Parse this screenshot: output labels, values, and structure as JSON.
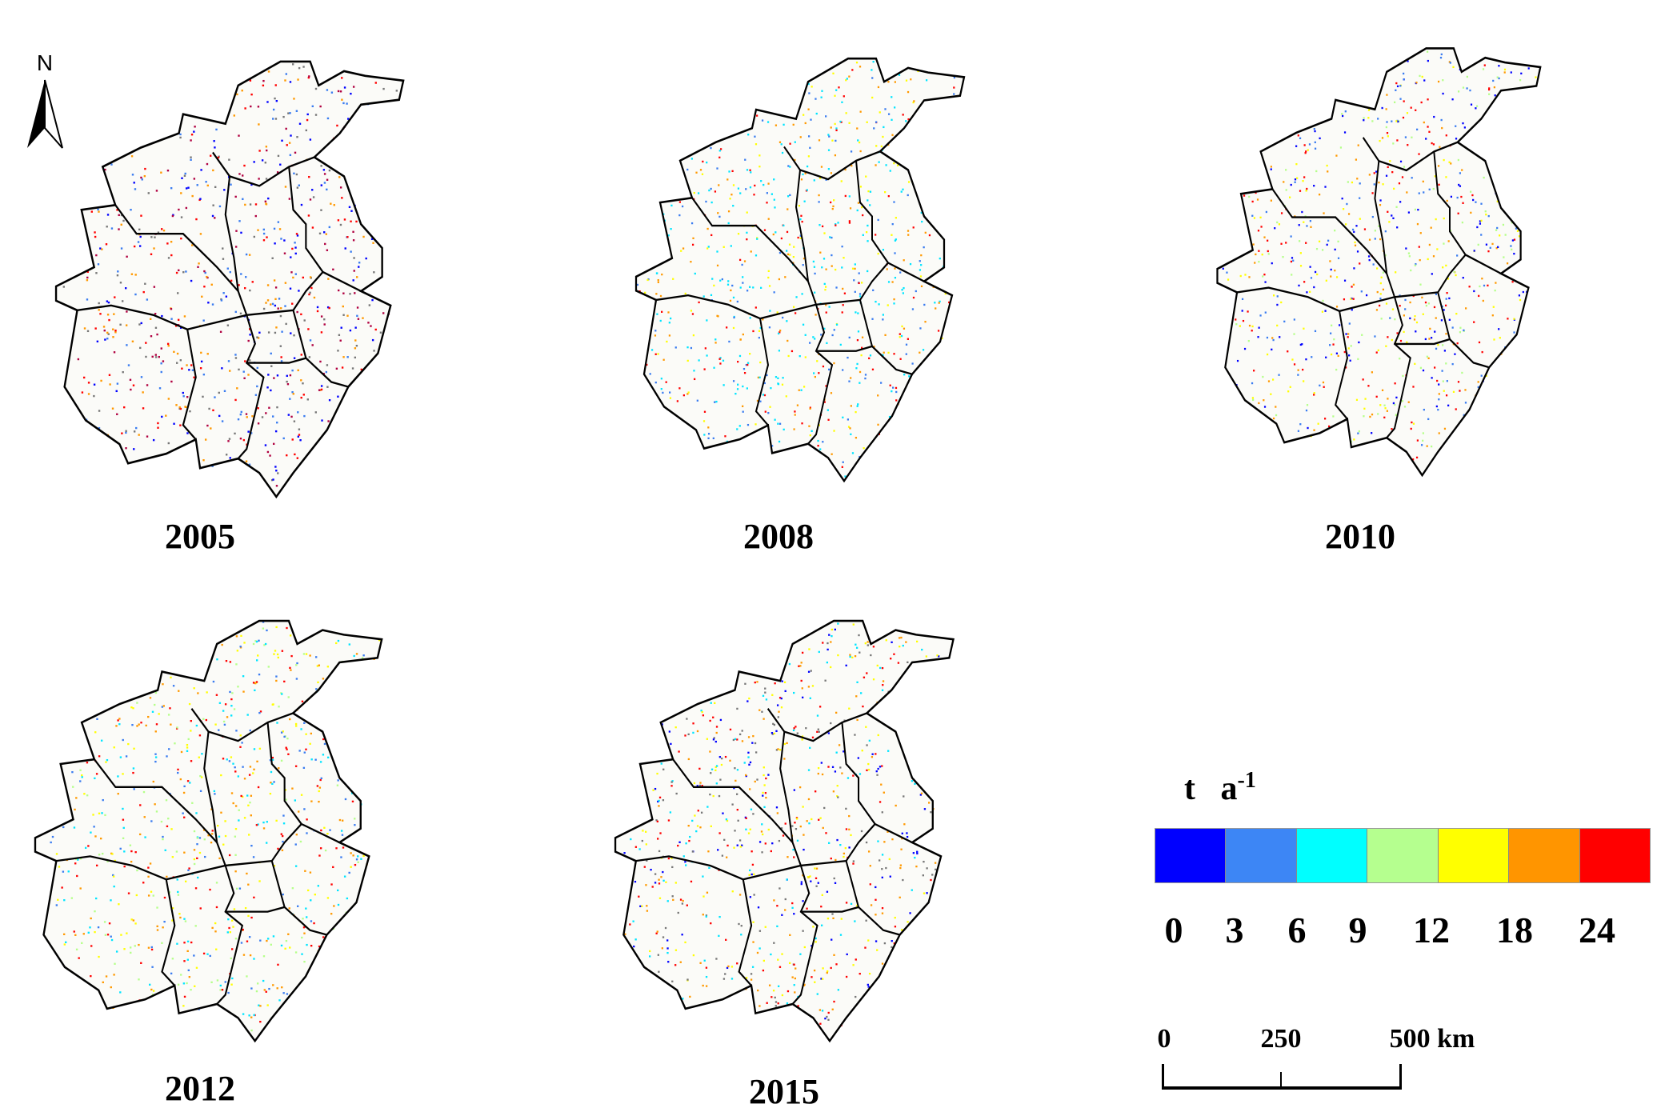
{
  "north_label": "N",
  "maps": [
    {
      "year": "2005",
      "palette": [
        "#0000ff",
        "#ff0000",
        "#3a7cf0",
        "#ff9900",
        "#777777",
        "#b00040"
      ]
    },
    {
      "year": "2008",
      "palette": [
        "#00e5ff",
        "#ff0000",
        "#3a7cf0",
        "#ff9900",
        "#00e5ff",
        "#ffff00"
      ]
    },
    {
      "year": "2010",
      "palette": [
        "#0000ff",
        "#3a7cf0",
        "#b5ff8a",
        "#ffff00",
        "#ff9900",
        "#ff0000"
      ]
    },
    {
      "year": "2012",
      "palette": [
        "#3a7cf0",
        "#00e5ff",
        "#b5ff8a",
        "#ff9900",
        "#ff0000",
        "#ffff00"
      ]
    },
    {
      "year": "2015",
      "palette": [
        "#0000ff",
        "#ff0000",
        "#ffff00",
        "#ff9900",
        "#00e5ff",
        "#777777"
      ]
    }
  ],
  "legend": {
    "unit_base": "t   a",
    "unit_exp": "-1",
    "classes": [
      {
        "range": "0-3",
        "color": "#0000ff"
      },
      {
        "range": "3-6",
        "color": "#3d86f5"
      },
      {
        "range": "6-9",
        "color": "#00ffff"
      },
      {
        "range": "9-12",
        "color": "#b5ff8f"
      },
      {
        "range": "12-18",
        "color": "#ffff00"
      },
      {
        "range": "18-24",
        "color": "#ff9500"
      },
      {
        "range": ">24",
        "color": "#ff0000"
      }
    ],
    "breaks": [
      "0",
      "3",
      "6",
      "9",
      "12",
      "18",
      "24"
    ]
  },
  "scale_bar": {
    "labels": [
      "0",
      "250",
      "500 km"
    ]
  }
}
